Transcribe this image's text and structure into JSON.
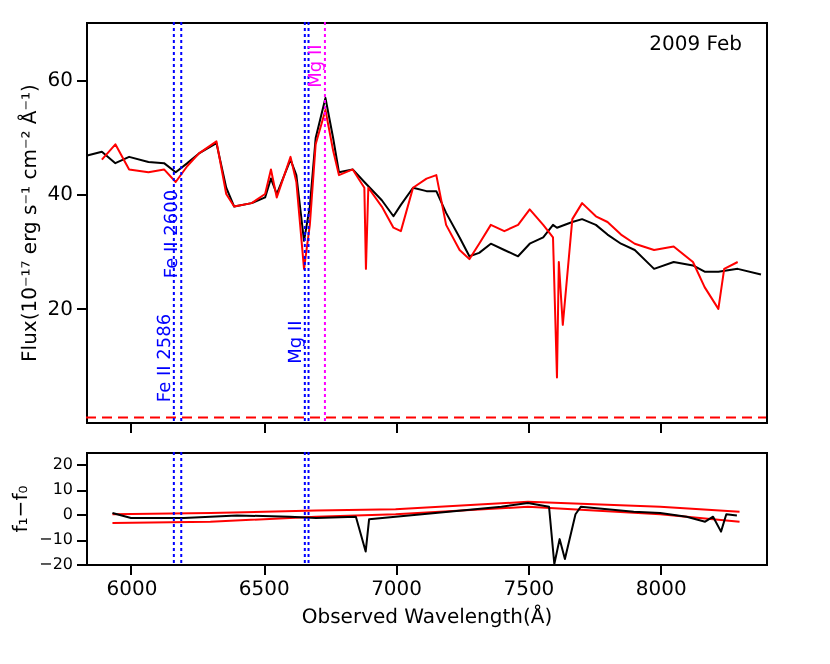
{
  "chart_data": [
    {
      "type": "line",
      "ylabel": "Flux(10⁻¹⁷ erg s⁻¹ cm⁻² Å⁻¹)",
      "annotations": [
        "2009 Feb"
      ],
      "xlim": [
        5830,
        8400
      ],
      "xticks": [
        6000,
        6500,
        7000,
        7500,
        8000
      ],
      "ylim": [
        0,
        70
      ],
      "yticks": [
        20,
        40,
        60
      ],
      "tick_labels": "y",
      "grid": false,
      "ref_lines": [
        {
          "axis": "x",
          "value": 6162,
          "label": "Fe II 2586",
          "color": "#0000ff",
          "line_style": "dotted"
        },
        {
          "axis": "x",
          "value": 6190,
          "label": "Fe II 2600",
          "color": "#0000ff",
          "line_style": "dotted"
        },
        {
          "axis": "x",
          "value": 6657,
          "label": "Mg II",
          "color": "#0000ff",
          "line_style": "dotted"
        },
        {
          "axis": "x",
          "value": 6671,
          "label": null,
          "color": "#0000ff",
          "line_style": "dotted"
        },
        {
          "axis": "x",
          "value": 6733,
          "label": "Mg II",
          "color": "#ff00ff",
          "line_style": "dotted"
        }
      ],
      "series": [
        {
          "color": "#000000",
          "x": [
            5831,
            5890,
            5941,
            5993,
            6066,
            6125,
            6169,
            6213,
            6257,
            6323,
            6360,
            6390,
            6456,
            6507,
            6529,
            6551,
            6603,
            6625,
            6654,
            6676,
            6698,
            6735,
            6764,
            6786,
            6838,
            6882,
            6948,
            6992,
            7020,
            7066,
            7117,
            7154,
            7191,
            7242,
            7279,
            7316,
            7360,
            7411,
            7463,
            7507,
            7558,
            7595,
            7610,
            7668,
            7705,
            7757,
            7801,
            7852,
            7904,
            7977,
            8051,
            8124,
            8168,
            8220,
            8293,
            8381
          ],
          "values": [
            46.6,
            47.3,
            45.3,
            46.4,
            45.5,
            45.3,
            43.7,
            45.3,
            47,
            48.8,
            41,
            37.7,
            38.3,
            39.3,
            42.6,
            39.9,
            45.9,
            43.2,
            31.7,
            37.7,
            49.7,
            56.7,
            49.7,
            43.7,
            44.2,
            42,
            38.8,
            36,
            38,
            41,
            40.4,
            40.4,
            36.6,
            32.3,
            29,
            29.6,
            31.2,
            30.1,
            29,
            31.2,
            32.3,
            34.5,
            34,
            35,
            35.5,
            34.5,
            32.8,
            31.2,
            30.1,
            26.8,
            28,
            27.4,
            26.3,
            26.3,
            26.8,
            25.8
          ]
        },
        {
          "color": "#ff0000",
          "x": [
            5890,
            5941,
            5993,
            6066,
            6125,
            6169,
            6213,
            6257,
            6323,
            6360,
            6390,
            6456,
            6507,
            6529,
            6551,
            6603,
            6625,
            6654,
            6676,
            6698,
            6735,
            6764,
            6786,
            6838,
            6882,
            6888,
            6897,
            6948,
            6992,
            7020,
            7066,
            7117,
            7154,
            7191,
            7242,
            7279,
            7316,
            7360,
            7411,
            7463,
            7507,
            7558,
            7595,
            7610,
            7617,
            7632,
            7668,
            7705,
            7757,
            7801,
            7852,
            7904,
            7977,
            8051,
            8124,
            8168,
            8220,
            8242,
            8293
          ],
          "values": [
            45.9,
            48.6,
            44.2,
            43.7,
            44.2,
            42,
            44.8,
            47,
            49.1,
            39.9,
            37.7,
            38.3,
            39.9,
            44.2,
            39.3,
            46.4,
            42,
            26.8,
            34.5,
            48.6,
            54.6,
            47.5,
            43.2,
            44.2,
            41,
            26.8,
            41,
            37.7,
            34,
            33.4,
            41,
            42.6,
            43.2,
            34.5,
            30.1,
            28.5,
            31.2,
            34.5,
            33.4,
            34.5,
            37.2,
            34.5,
            32.3,
            7.8,
            28,
            17,
            35.5,
            38.3,
            36,
            35,
            32.8,
            31.2,
            30.1,
            30.7,
            28,
            23.6,
            19.8,
            26.8,
            28
          ]
        },
        {
          "color": "#ff0000",
          "line_style": "dashed",
          "x": [
            5830,
            6400,
            7000,
            7600,
            8400
          ],
          "values": [
            0.8,
            0.8,
            0.8,
            0.8,
            0.8
          ]
        }
      ]
    },
    {
      "type": "line",
      "xlabel": "Observed Wavelength(Å)",
      "ylabel": "f₁−f₀",
      "xlim": [
        5830,
        8400
      ],
      "xticks": [
        6000,
        6500,
        7000,
        7500,
        8000
      ],
      "ylim": [
        -20,
        25
      ],
      "yticks": [
        -20,
        -10,
        0,
        10,
        20
      ],
      "grid": false,
      "ref_lines": [
        {
          "axis": "x",
          "value": 6162,
          "label": null,
          "color": "#0000ff",
          "line_style": "dotted"
        },
        {
          "axis": "x",
          "value": 6190,
          "label": null,
          "color": "#0000ff",
          "line_style": "dotted"
        },
        {
          "axis": "x",
          "value": 6657,
          "label": null,
          "color": "#0000ff",
          "line_style": "dotted"
        },
        {
          "axis": "x",
          "value": 6671,
          "label": null,
          "color": "#0000ff",
          "line_style": "dotted"
        }
      ],
      "series": [
        {
          "color": "#ff0000",
          "x": [
            5930,
            6300,
            6700,
            7000,
            7500,
            8000,
            8300
          ],
          "values": [
            -3.5,
            -3,
            -1,
            0,
            3,
            0,
            -3
          ]
        },
        {
          "color": "#ff0000",
          "x": [
            5930,
            6300,
            6700,
            7000,
            7500,
            8000,
            8300
          ],
          "values": [
            0,
            0.5,
            1.5,
            2,
            5,
            3,
            1
          ]
        },
        {
          "color": "#000000",
          "x": [
            5930,
            6000,
            6200,
            6400,
            6600,
            6700,
            6850,
            6887,
            6900,
            7000,
            7100,
            7200,
            7300,
            7400,
            7500,
            7580,
            7600,
            7620,
            7640,
            7680,
            7700,
            7800,
            7900,
            8000,
            8100,
            8170,
            8200,
            8230,
            8250,
            8290
          ],
          "values": [
            0.5,
            -1.5,
            -1.5,
            -0.5,
            -1,
            -1.5,
            -1,
            -15,
            -2,
            -1,
            0,
            1,
            2,
            3,
            4.5,
            3,
            -20,
            -10,
            -18,
            0,
            3,
            2,
            1,
            0.5,
            -1,
            -3,
            -1,
            -7,
            0,
            -0.5
          ]
        }
      ]
    }
  ]
}
